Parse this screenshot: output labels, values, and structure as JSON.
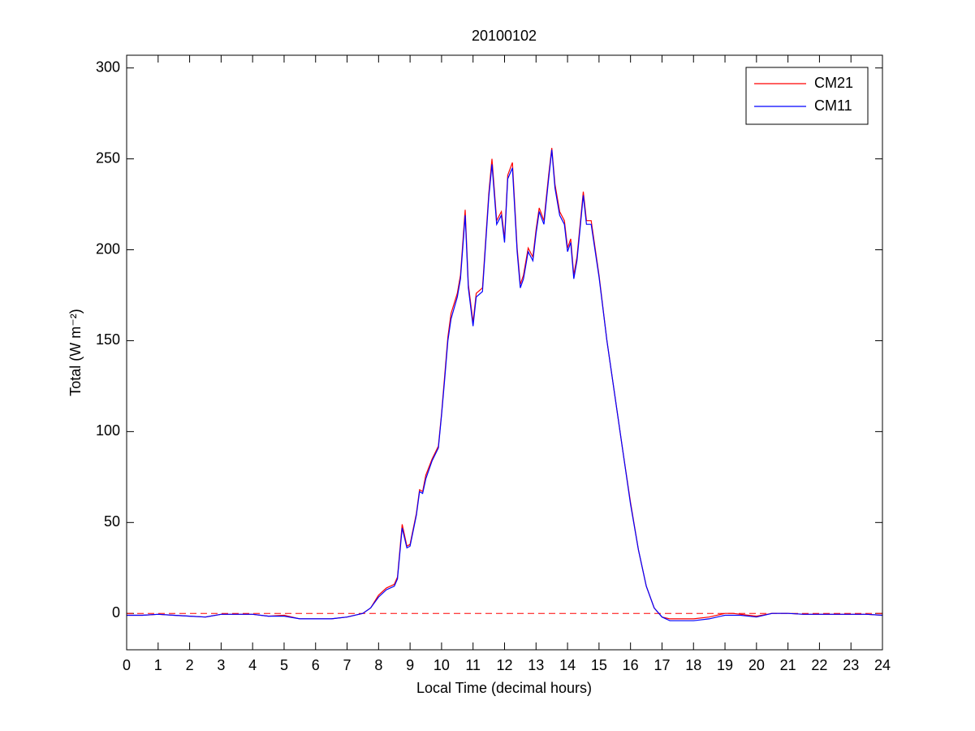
{
  "chart_data": {
    "type": "line",
    "title": "20100102",
    "x_label": "Local Time (decimal hours)",
    "y_label": "Total (W m⁻²)",
    "x": [
      0,
      0.5,
      1,
      1.5,
      2,
      2.5,
      3,
      3.5,
      4,
      4.5,
      5,
      5.5,
      6,
      6.5,
      7,
      7.5,
      7.75,
      8,
      8.25,
      8.5,
      8.6,
      8.75,
      8.9,
      9,
      9.2,
      9.3,
      9.4,
      9.5,
      9.7,
      9.9,
      10,
      10.1,
      10.2,
      10.3,
      10.5,
      10.6,
      10.75,
      10.85,
      11,
      11.1,
      11.3,
      11.5,
      11.6,
      11.75,
      11.9,
      12,
      12.1,
      12.25,
      12.4,
      12.5,
      12.6,
      12.75,
      12.9,
      13,
      13.1,
      13.25,
      13.4,
      13.5,
      13.6,
      13.75,
      13.9,
      14,
      14.1,
      14.2,
      14.3,
      14.5,
      14.6,
      14.75,
      15,
      15.25,
      15.5,
      15.75,
      16,
      16.25,
      16.5,
      16.75,
      17,
      17.25,
      17.5,
      18,
      18.5,
      19,
      19.25,
      19.5,
      20,
      20.5,
      21,
      21.5,
      22,
      22.5,
      23,
      23.5,
      24
    ],
    "series": [
      {
        "name": "CM21",
        "color": "#ff0000",
        "values": [
          -1,
          -1,
          -0.5,
          -1,
          -1.5,
          -2,
          -0.5,
          -0.5,
          -0.5,
          -1.5,
          -1,
          -3,
          -3,
          -3,
          -2,
          0,
          3,
          10,
          14,
          16,
          20,
          49,
          37,
          38,
          55,
          68,
          67,
          76,
          85,
          92,
          110,
          131,
          152,
          165,
          176,
          186,
          222,
          181,
          160,
          176,
          179,
          231,
          250,
          216,
          221,
          206,
          241,
          248,
          201,
          181,
          186,
          201,
          196,
          211,
          223,
          216,
          241,
          256,
          236,
          221,
          216,
          201,
          206,
          186,
          196,
          232,
          216,
          216,
          186,
          150,
          120,
          90,
          61,
          35,
          15,
          3,
          -2,
          -3,
          -3,
          -3,
          -2,
          0,
          0,
          -0.5,
          -1.5,
          0,
          0,
          -0.5,
          -0.5,
          -0.5,
          -0.5,
          -0.5,
          -1
        ]
      },
      {
        "name": "CM11",
        "color": "#0000ff",
        "values": [
          -1,
          -1,
          -0.5,
          -1,
          -1.5,
          -2,
          -0.5,
          -0.5,
          -0.5,
          -1.5,
          -1.5,
          -3,
          -3,
          -3,
          -2,
          0,
          3,
          9,
          13,
          15,
          19,
          47,
          36,
          37,
          54,
          67,
          66,
          74,
          84,
          91,
          109,
          129,
          150,
          162,
          174,
          184,
          219,
          179,
          158,
          174,
          177,
          229,
          247,
          214,
          219,
          204,
          239,
          245,
          199,
          179,
          184,
          199,
          194,
          209,
          221,
          214,
          239,
          255,
          234,
          219,
          214,
          199,
          204,
          184,
          194,
          230,
          214,
          214,
          185,
          150,
          120,
          90,
          60,
          35,
          15,
          3,
          -2,
          -4,
          -4,
          -4,
          -3,
          -1,
          -1,
          -1,
          -2,
          0,
          0,
          -0.5,
          -0.5,
          -0.5,
          -0.5,
          -0.5,
          -1
        ]
      }
    ],
    "reference_line": {
      "value": 0,
      "color": "#ff0000",
      "style": "dashed"
    },
    "xlim": [
      0,
      24
    ],
    "xticks": [
      0,
      1,
      2,
      3,
      4,
      5,
      6,
      7,
      8,
      9,
      10,
      11,
      12,
      13,
      14,
      15,
      16,
      17,
      18,
      19,
      20,
      21,
      22,
      23,
      24
    ],
    "ylim": [
      -20,
      307
    ],
    "yticks": [
      0,
      50,
      100,
      150,
      200,
      250,
      300
    ],
    "legend": "upper right",
    "grid": false
  }
}
